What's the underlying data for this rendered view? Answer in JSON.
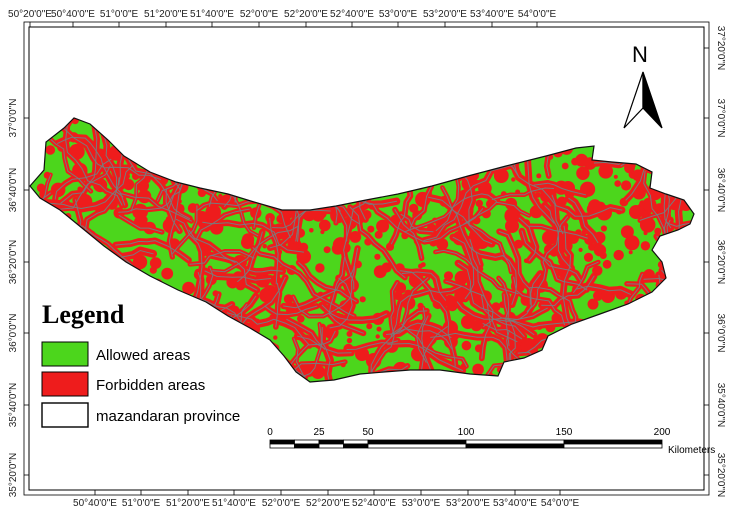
{
  "map": {
    "top_ticks": [
      "50°20'0\"E",
      "50°40'0\"E",
      "51°0'0\"E",
      "51°20'0\"E",
      "51°40'0\"E",
      "52°0'0\"E",
      "52°20'0\"E",
      "52°40'0\"E",
      "53°0'0\"E",
      "53°20'0\"E",
      "53°40'0\"E",
      "54°0'0\"E"
    ],
    "bottom_ticks": [
      "50°40'0\"E",
      "51°0'0\"E",
      "51°20'0\"E",
      "51°40'0\"E",
      "52°0'0\"E",
      "52°20'0\"E",
      "52°40'0\"E",
      "53°0'0\"E",
      "53°20'0\"E",
      "53°40'0\"E",
      "54°0'0\"E"
    ],
    "left_ticks": [
      "37°0'0\"N",
      "36°40'0\"N",
      "36°20'0\"N",
      "36°0'0\"N",
      "35°40'0\"N",
      "35°20'0\"N"
    ],
    "right_ticks": [
      "37°20'0\"N",
      "37°0'0\"N",
      "36°40'0\"N",
      "36°20'0\"N",
      "36°0'0\"N",
      "35°40'0\"N",
      "35°20'0\"N"
    ],
    "colors": {
      "allowed": "#4cd61c",
      "forbidden": "#ee1c1c",
      "province_border": "#111111",
      "roads": "#7a7a7a"
    }
  },
  "legend": {
    "title": "Legend",
    "items": [
      {
        "label": "Allowed areas",
        "color": "#4cd61c"
      },
      {
        "label": "Forbidden areas",
        "color": "#ee1c1c"
      },
      {
        "label": "mazandaran province",
        "color": "#ffffff"
      }
    ]
  },
  "scale_bar": {
    "labels": [
      "0",
      "25",
      "50",
      "100",
      "150",
      "200"
    ],
    "unit": "Kilometers"
  },
  "north_arrow": {
    "label": "N",
    "icon": "north-arrow-icon"
  }
}
